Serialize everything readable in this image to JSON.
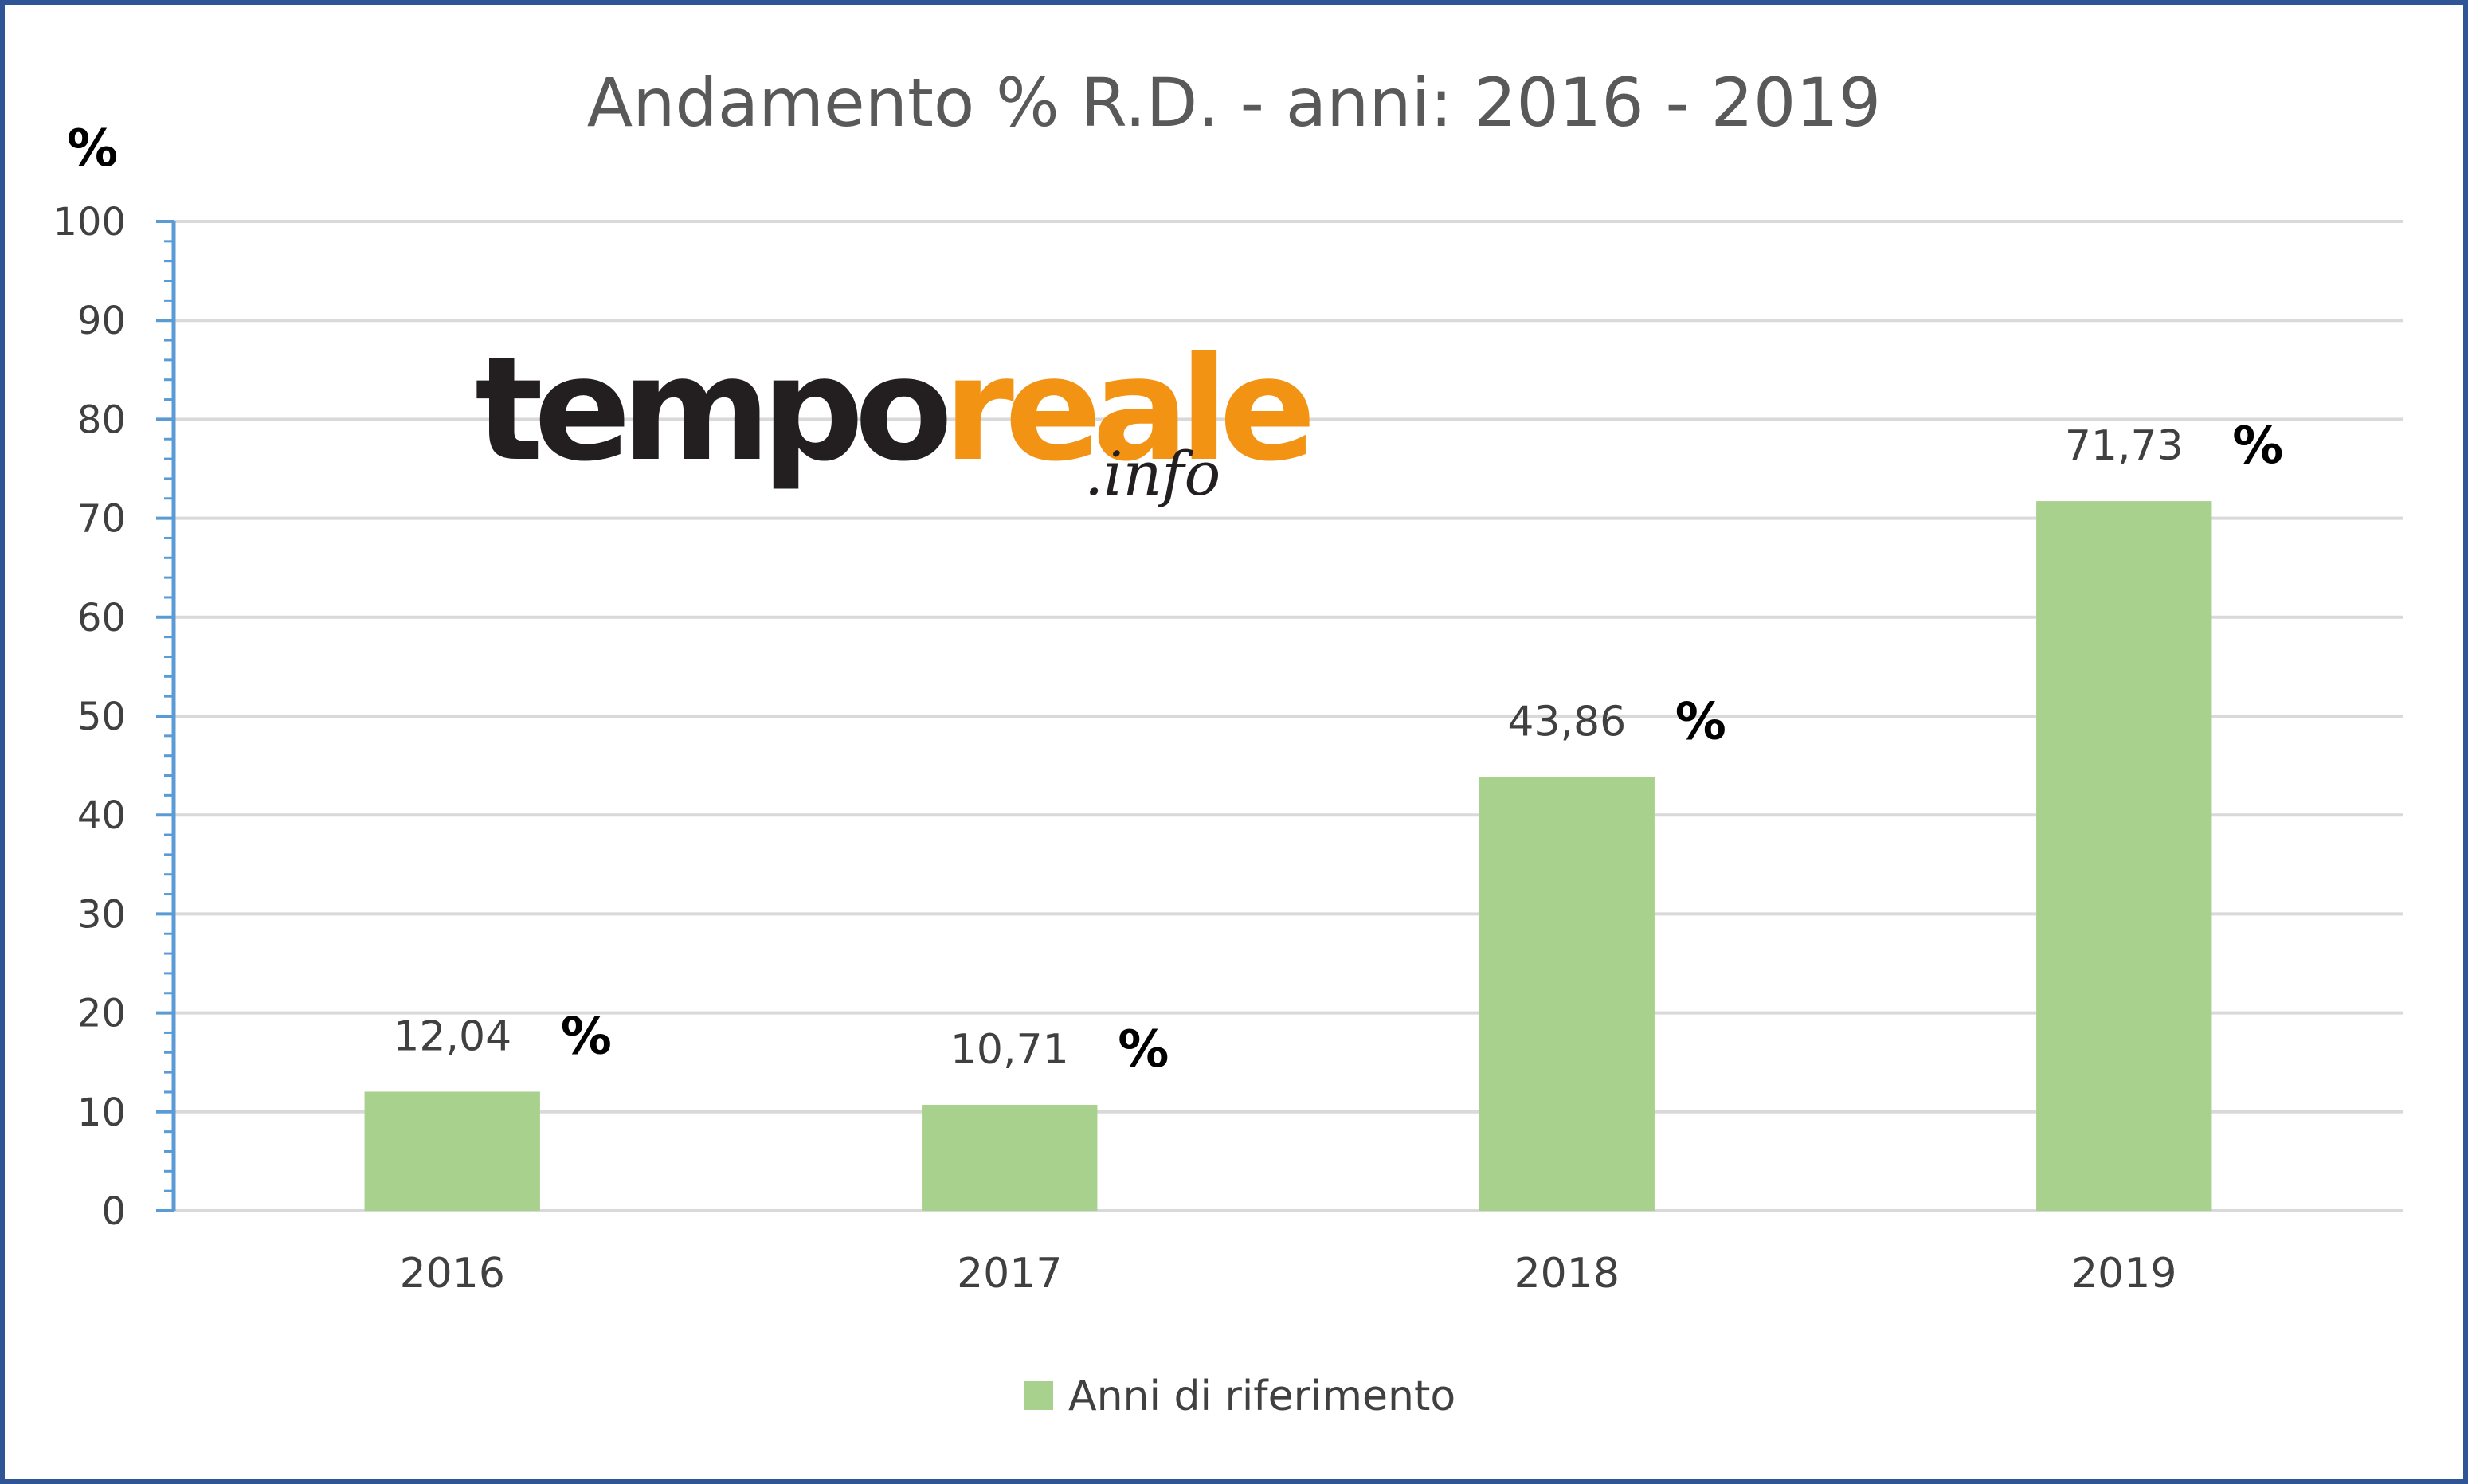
{
  "chart_data": {
    "type": "bar",
    "title": "Andamento % R.D. - anni: 2016 - 2019",
    "ylabel": "%",
    "xlabel": "",
    "categories": [
      "2016",
      "2017",
      "2018",
      "2019"
    ],
    "series": [
      {
        "name": "Anni di riferimento",
        "values": [
          12.04,
          10.71,
          43.86,
          71.73
        ],
        "data_labels": [
          "12,04",
          "10,71",
          "43,86",
          "71,73"
        ],
        "color": "#a9d18e"
      }
    ],
    "ylim": [
      0,
      100
    ],
    "yticks": [
      "0",
      "10",
      "20",
      "30",
      "40",
      "50",
      "60",
      "70",
      "80",
      "90",
      "100"
    ],
    "value_suffix": "%",
    "grid": true,
    "legend_position": "bottom",
    "axis_color": "#5b9bd5",
    "grid_color": "#d9d9d9"
  },
  "watermark": {
    "part1": "tempo",
    "part2": "reale",
    "part3": ".info"
  }
}
